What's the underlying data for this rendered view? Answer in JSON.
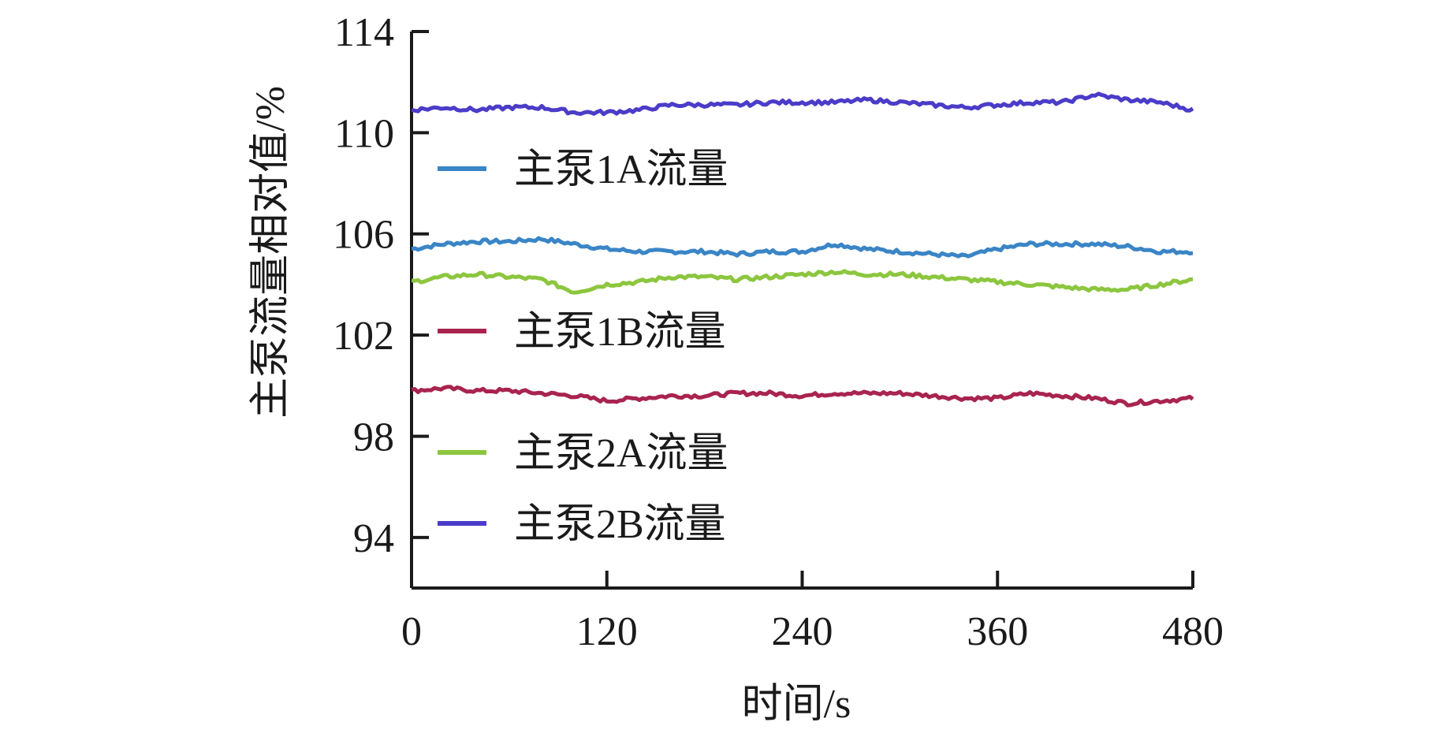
{
  "chart_data": {
    "type": "line",
    "title": "",
    "xlabel": "时间/s",
    "ylabel": "主泵流量相对值/%",
    "xlim": [
      0,
      480
    ],
    "ylim": [
      92,
      114
    ],
    "xticks": [
      0,
      120,
      240,
      360,
      480
    ],
    "yticks": [
      94,
      98,
      102,
      106,
      110,
      114
    ],
    "grid": false,
    "legend_position": "inside-left",
    "x": [
      0,
      20,
      40,
      60,
      80,
      100,
      120,
      140,
      160,
      180,
      200,
      220,
      240,
      260,
      280,
      300,
      320,
      340,
      360,
      380,
      400,
      420,
      440,
      460,
      480
    ],
    "series": [
      {
        "name": "主泵1A流量",
        "color": "#3a85c6",
        "values": [
          105.4,
          105.6,
          105.7,
          105.7,
          105.8,
          105.6,
          105.4,
          105.3,
          105.3,
          105.3,
          105.2,
          105.3,
          105.3,
          105.6,
          105.4,
          105.3,
          105.2,
          105.1,
          105.4,
          105.6,
          105.6,
          105.6,
          105.5,
          105.3,
          105.3
        ]
      },
      {
        "name": "主泵1B流量",
        "color": "#a8244f",
        "values": [
          99.8,
          99.9,
          99.8,
          99.8,
          99.7,
          99.6,
          99.4,
          99.5,
          99.6,
          99.6,
          99.7,
          99.7,
          99.6,
          99.7,
          99.7,
          99.7,
          99.6,
          99.5,
          99.5,
          99.7,
          99.6,
          99.5,
          99.3,
          99.4,
          99.5
        ]
      },
      {
        "name": "主泵2A流量",
        "color": "#8cc63f",
        "values": [
          104.1,
          104.3,
          104.4,
          104.3,
          104.2,
          103.7,
          104.0,
          104.1,
          104.3,
          104.3,
          104.2,
          104.3,
          104.4,
          104.5,
          104.4,
          104.4,
          104.3,
          104.2,
          104.1,
          104.0,
          103.9,
          103.8,
          103.8,
          104.0,
          104.2
        ]
      },
      {
        "name": "主泵2B流量",
        "color": "#4b3cc8",
        "values": [
          110.9,
          111.0,
          110.9,
          111.0,
          111.0,
          110.8,
          110.8,
          110.9,
          111.1,
          111.1,
          111.1,
          111.2,
          111.2,
          111.2,
          111.3,
          111.2,
          111.1,
          111.0,
          111.1,
          111.2,
          111.2,
          111.5,
          111.3,
          111.2,
          110.9
        ]
      }
    ]
  }
}
